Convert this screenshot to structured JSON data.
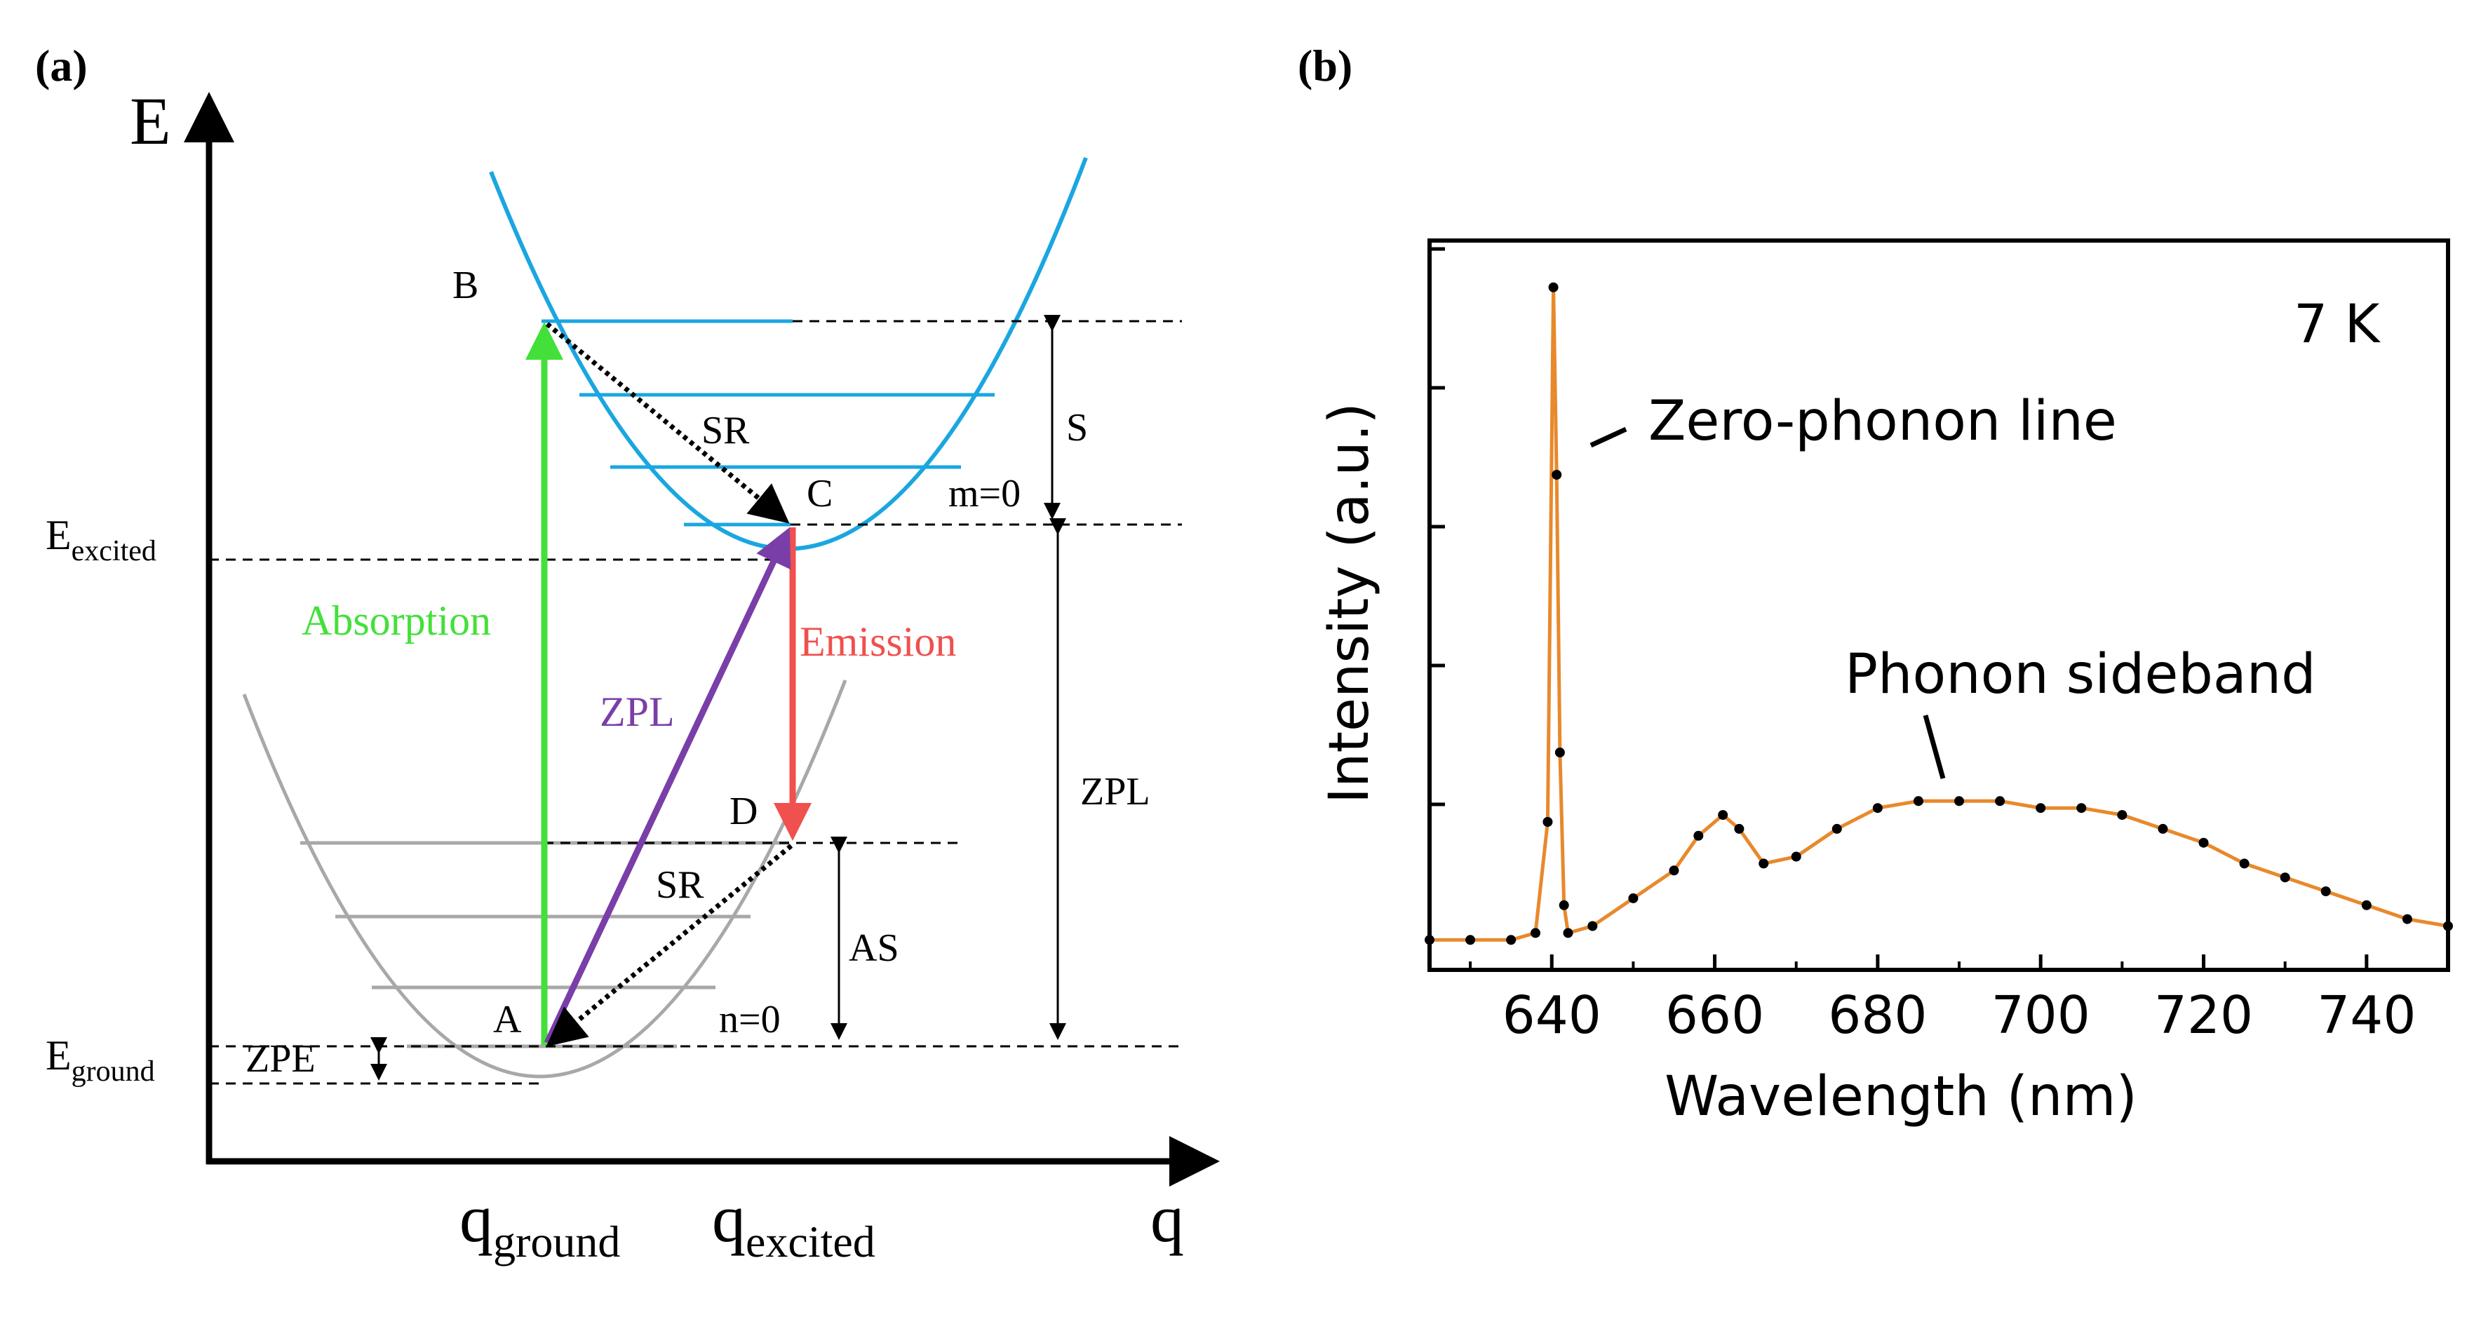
{
  "panel_a": {
    "label": "(a)",
    "axis_y": "E",
    "axis_x": "q",
    "q_ground": "ground",
    "q_excited": "excited",
    "E_excited_sub": "excited",
    "E_ground_sub": "ground",
    "point_A": "A",
    "point_B": "B",
    "point_C": "C",
    "point_D": "D",
    "sr_top": "SR",
    "sr_bottom": "SR",
    "S": "S",
    "AS": "AS",
    "ZPL_side": "ZPL",
    "ZPL_arrow": "ZPL",
    "absorption": "Absorption",
    "emission": "Emission",
    "m0": "m=0",
    "n0": "n=0",
    "zpe": "ZPE",
    "colors": {
      "excited_curve": "#1aa6e0",
      "ground_curve": "#a8a8a8",
      "absorption": "#44e03a",
      "emission": "#f0504e",
      "zpl": "#7a3ea8"
    }
  },
  "panel_b": {
    "label": "(b)",
    "temp_label": "7 K",
    "zpl_annotation": "Zero-phonon line",
    "sideband_annotation": "Phonon sideband",
    "colors": {
      "fit_line": "#e8892c",
      "points": "#000000"
    },
    "chart_data": {
      "type": "scatter",
      "xlabel": "Wavelength (nm)",
      "ylabel": "Intensity (a.u.)",
      "xlim": [
        625,
        750
      ],
      "ylim": [
        0,
        1
      ],
      "x_ticks": [
        640,
        660,
        680,
        700,
        720,
        740
      ],
      "series": [
        {
          "x": [
            625,
            630,
            635,
            638,
            639.5,
            640.2,
            640.6,
            641.0,
            641.5,
            642,
            645,
            650,
            655,
            658,
            661,
            663,
            666,
            670,
            675,
            680,
            685,
            690,
            695,
            700,
            705,
            710,
            715,
            720,
            725,
            730,
            735,
            740,
            745,
            750
          ],
          "y": [
            0.03,
            0.03,
            0.03,
            0.04,
            0.2,
            0.97,
            0.7,
            0.3,
            0.08,
            0.04,
            0.05,
            0.09,
            0.13,
            0.18,
            0.21,
            0.19,
            0.14,
            0.15,
            0.19,
            0.22,
            0.23,
            0.23,
            0.23,
            0.22,
            0.22,
            0.21,
            0.19,
            0.17,
            0.14,
            0.12,
            0.1,
            0.08,
            0.06,
            0.05
          ]
        }
      ]
    }
  }
}
